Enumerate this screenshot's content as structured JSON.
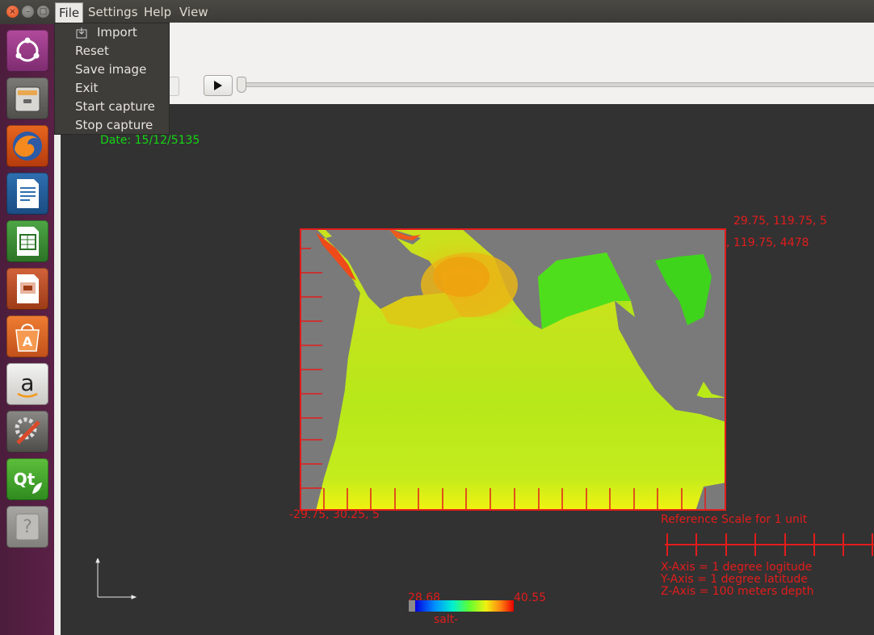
{
  "window": {
    "close_glyph": "×",
    "min_glyph": "–",
    "max_glyph": "□"
  },
  "menubar": {
    "items": [
      "File",
      "Settings",
      "Help",
      "View"
    ]
  },
  "file_menu": {
    "items": [
      "Import",
      "Reset",
      "Save image",
      "Exit",
      "Start capture",
      "Stop capture"
    ]
  },
  "launcher": {
    "apps": [
      "ubuntu-dash-icon",
      "files-icon",
      "firefox-icon",
      "writer-icon",
      "calc-icon",
      "impress-icon",
      "software-center-icon",
      "amazon-icon",
      "system-settings-icon",
      "qt-creator-icon",
      "help-icon"
    ]
  },
  "viewport": {
    "date": "Date: 15/12/5135",
    "corner_top_1": "29.75, 119.75, 5",
    "corner_top_2": ", 119.75, 4478",
    "corner_bottom": "-29.75, 30.25, 5",
    "reference_title": "Reference Scale for 1 unit",
    "x_axis_note": "X-Axis = 1 degree logitude",
    "y_axis_note": "Y-Axis = 1 degree latitude",
    "z_axis_note": "Z-Axis = 100 meters depth",
    "legend_min": "28.68",
    "legend_max": "40.55",
    "legend_label": "salt-"
  },
  "colors": {
    "accent_red": "#e21c1c",
    "date_green": "#14d614",
    "land_gray": "#7a7a7a"
  }
}
